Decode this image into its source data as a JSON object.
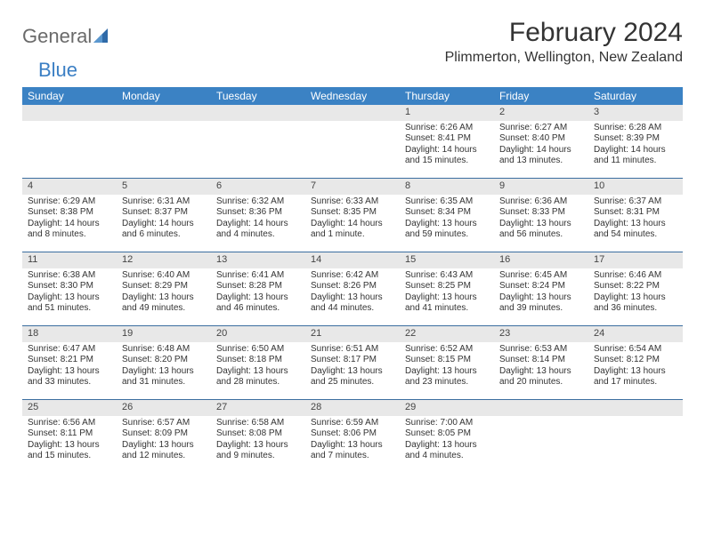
{
  "logo": {
    "part1": "General",
    "part2": "Blue"
  },
  "title": "February 2024",
  "location": "Plimmerton, Wellington, New Zealand",
  "colors": {
    "header_bg": "#3b82c4",
    "header_text": "#ffffff",
    "daynum_bg": "#e8e8e8",
    "week_divider": "#3b6ea0",
    "logo_gray": "#6a6a6a",
    "logo_blue": "#3b7fc4",
    "text": "#333333",
    "page_bg": "#ffffff"
  },
  "day_names": [
    "Sunday",
    "Monday",
    "Tuesday",
    "Wednesday",
    "Thursday",
    "Friday",
    "Saturday"
  ],
  "weeks": [
    [
      {
        "n": "",
        "sr": "",
        "ss": "",
        "dl": ""
      },
      {
        "n": "",
        "sr": "",
        "ss": "",
        "dl": ""
      },
      {
        "n": "",
        "sr": "",
        "ss": "",
        "dl": ""
      },
      {
        "n": "",
        "sr": "",
        "ss": "",
        "dl": ""
      },
      {
        "n": "1",
        "sr": "Sunrise: 6:26 AM",
        "ss": "Sunset: 8:41 PM",
        "dl": "Daylight: 14 hours and 15 minutes."
      },
      {
        "n": "2",
        "sr": "Sunrise: 6:27 AM",
        "ss": "Sunset: 8:40 PM",
        "dl": "Daylight: 14 hours and 13 minutes."
      },
      {
        "n": "3",
        "sr": "Sunrise: 6:28 AM",
        "ss": "Sunset: 8:39 PM",
        "dl": "Daylight: 14 hours and 11 minutes."
      }
    ],
    [
      {
        "n": "4",
        "sr": "Sunrise: 6:29 AM",
        "ss": "Sunset: 8:38 PM",
        "dl": "Daylight: 14 hours and 8 minutes."
      },
      {
        "n": "5",
        "sr": "Sunrise: 6:31 AM",
        "ss": "Sunset: 8:37 PM",
        "dl": "Daylight: 14 hours and 6 minutes."
      },
      {
        "n": "6",
        "sr": "Sunrise: 6:32 AM",
        "ss": "Sunset: 8:36 PM",
        "dl": "Daylight: 14 hours and 4 minutes."
      },
      {
        "n": "7",
        "sr": "Sunrise: 6:33 AM",
        "ss": "Sunset: 8:35 PM",
        "dl": "Daylight: 14 hours and 1 minute."
      },
      {
        "n": "8",
        "sr": "Sunrise: 6:35 AM",
        "ss": "Sunset: 8:34 PM",
        "dl": "Daylight: 13 hours and 59 minutes."
      },
      {
        "n": "9",
        "sr": "Sunrise: 6:36 AM",
        "ss": "Sunset: 8:33 PM",
        "dl": "Daylight: 13 hours and 56 minutes."
      },
      {
        "n": "10",
        "sr": "Sunrise: 6:37 AM",
        "ss": "Sunset: 8:31 PM",
        "dl": "Daylight: 13 hours and 54 minutes."
      }
    ],
    [
      {
        "n": "11",
        "sr": "Sunrise: 6:38 AM",
        "ss": "Sunset: 8:30 PM",
        "dl": "Daylight: 13 hours and 51 minutes."
      },
      {
        "n": "12",
        "sr": "Sunrise: 6:40 AM",
        "ss": "Sunset: 8:29 PM",
        "dl": "Daylight: 13 hours and 49 minutes."
      },
      {
        "n": "13",
        "sr": "Sunrise: 6:41 AM",
        "ss": "Sunset: 8:28 PM",
        "dl": "Daylight: 13 hours and 46 minutes."
      },
      {
        "n": "14",
        "sr": "Sunrise: 6:42 AM",
        "ss": "Sunset: 8:26 PM",
        "dl": "Daylight: 13 hours and 44 minutes."
      },
      {
        "n": "15",
        "sr": "Sunrise: 6:43 AM",
        "ss": "Sunset: 8:25 PM",
        "dl": "Daylight: 13 hours and 41 minutes."
      },
      {
        "n": "16",
        "sr": "Sunrise: 6:45 AM",
        "ss": "Sunset: 8:24 PM",
        "dl": "Daylight: 13 hours and 39 minutes."
      },
      {
        "n": "17",
        "sr": "Sunrise: 6:46 AM",
        "ss": "Sunset: 8:22 PM",
        "dl": "Daylight: 13 hours and 36 minutes."
      }
    ],
    [
      {
        "n": "18",
        "sr": "Sunrise: 6:47 AM",
        "ss": "Sunset: 8:21 PM",
        "dl": "Daylight: 13 hours and 33 minutes."
      },
      {
        "n": "19",
        "sr": "Sunrise: 6:48 AM",
        "ss": "Sunset: 8:20 PM",
        "dl": "Daylight: 13 hours and 31 minutes."
      },
      {
        "n": "20",
        "sr": "Sunrise: 6:50 AM",
        "ss": "Sunset: 8:18 PM",
        "dl": "Daylight: 13 hours and 28 minutes."
      },
      {
        "n": "21",
        "sr": "Sunrise: 6:51 AM",
        "ss": "Sunset: 8:17 PM",
        "dl": "Daylight: 13 hours and 25 minutes."
      },
      {
        "n": "22",
        "sr": "Sunrise: 6:52 AM",
        "ss": "Sunset: 8:15 PM",
        "dl": "Daylight: 13 hours and 23 minutes."
      },
      {
        "n": "23",
        "sr": "Sunrise: 6:53 AM",
        "ss": "Sunset: 8:14 PM",
        "dl": "Daylight: 13 hours and 20 minutes."
      },
      {
        "n": "24",
        "sr": "Sunrise: 6:54 AM",
        "ss": "Sunset: 8:12 PM",
        "dl": "Daylight: 13 hours and 17 minutes."
      }
    ],
    [
      {
        "n": "25",
        "sr": "Sunrise: 6:56 AM",
        "ss": "Sunset: 8:11 PM",
        "dl": "Daylight: 13 hours and 15 minutes."
      },
      {
        "n": "26",
        "sr": "Sunrise: 6:57 AM",
        "ss": "Sunset: 8:09 PM",
        "dl": "Daylight: 13 hours and 12 minutes."
      },
      {
        "n": "27",
        "sr": "Sunrise: 6:58 AM",
        "ss": "Sunset: 8:08 PM",
        "dl": "Daylight: 13 hours and 9 minutes."
      },
      {
        "n": "28",
        "sr": "Sunrise: 6:59 AM",
        "ss": "Sunset: 8:06 PM",
        "dl": "Daylight: 13 hours and 7 minutes."
      },
      {
        "n": "29",
        "sr": "Sunrise: 7:00 AM",
        "ss": "Sunset: 8:05 PM",
        "dl": "Daylight: 13 hours and 4 minutes."
      },
      {
        "n": "",
        "sr": "",
        "ss": "",
        "dl": ""
      },
      {
        "n": "",
        "sr": "",
        "ss": "",
        "dl": ""
      }
    ]
  ]
}
